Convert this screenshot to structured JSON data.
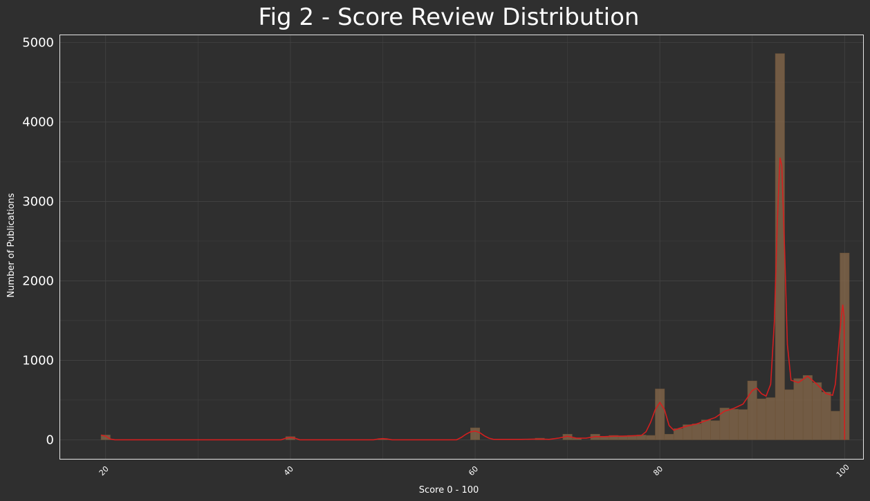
{
  "chart_data": {
    "type": "bar",
    "title": "Fig 2 - Score Review Distribution",
    "xlabel": "Score 0 - 100",
    "ylabel": "Number of Publications",
    "xlim": [
      15,
      102
    ],
    "ylim": [
      -240,
      5100
    ],
    "xticks": [
      20,
      40,
      60,
      80,
      100
    ],
    "yticks": [
      0,
      1000,
      2000,
      3000,
      4000,
      5000
    ],
    "grid": true,
    "bin_width": 1,
    "colors": {
      "background": "#2f2f2f",
      "plot_background": "#2f2f2f",
      "frame": "#e8e8e8",
      "grid": "#444444",
      "bar": "#8a6b4c",
      "bar_edge": "#6b5238",
      "kde": "#d41f1f"
    },
    "bins": [
      {
        "x": 20,
        "y": 60
      },
      {
        "x": 40,
        "y": 40
      },
      {
        "x": 50,
        "y": 15
      },
      {
        "x": 60,
        "y": 150
      },
      {
        "x": 67,
        "y": 20
      },
      {
        "x": 70,
        "y": 70
      },
      {
        "x": 71,
        "y": 20
      },
      {
        "x": 73,
        "y": 70
      },
      {
        "x": 74,
        "y": 40
      },
      {
        "x": 75,
        "y": 55
      },
      {
        "x": 76,
        "y": 50
      },
      {
        "x": 77,
        "y": 55
      },
      {
        "x": 78,
        "y": 60
      },
      {
        "x": 79,
        "y": 55
      },
      {
        "x": 80,
        "y": 640
      },
      {
        "x": 81,
        "y": 70
      },
      {
        "x": 82,
        "y": 140
      },
      {
        "x": 83,
        "y": 190
      },
      {
        "x": 84,
        "y": 200
      },
      {
        "x": 85,
        "y": 250
      },
      {
        "x": 86,
        "y": 240
      },
      {
        "x": 87,
        "y": 400
      },
      {
        "x": 88,
        "y": 385
      },
      {
        "x": 89,
        "y": 380
      },
      {
        "x": 90,
        "y": 740
      },
      {
        "x": 91,
        "y": 515
      },
      {
        "x": 92,
        "y": 530
      },
      {
        "x": 93,
        "y": 4860
      },
      {
        "x": 94,
        "y": 630
      },
      {
        "x": 95,
        "y": 770
      },
      {
        "x": 96,
        "y": 810
      },
      {
        "x": 97,
        "y": 720
      },
      {
        "x": 98,
        "y": 600
      },
      {
        "x": 99,
        "y": 360
      },
      {
        "x": 100,
        "y": 2350
      }
    ],
    "kde": [
      [
        19.5,
        60
      ],
      [
        20,
        45
      ],
      [
        20.5,
        10
      ],
      [
        21,
        0
      ],
      [
        30,
        0
      ],
      [
        39,
        0
      ],
      [
        39.5,
        20
      ],
      [
        40,
        30
      ],
      [
        40.5,
        20
      ],
      [
        41,
        0
      ],
      [
        49,
        0
      ],
      [
        49.5,
        10
      ],
      [
        50,
        15
      ],
      [
        50.5,
        10
      ],
      [
        51,
        0
      ],
      [
        58,
        0
      ],
      [
        58.5,
        30
      ],
      [
        59,
        70
      ],
      [
        59.5,
        100
      ],
      [
        60,
        110
      ],
      [
        60.5,
        90
      ],
      [
        61,
        50
      ],
      [
        61.5,
        20
      ],
      [
        62,
        5
      ],
      [
        65,
        5
      ],
      [
        67,
        10
      ],
      [
        68,
        5
      ],
      [
        69,
        20
      ],
      [
        70,
        45
      ],
      [
        71,
        20
      ],
      [
        72,
        20
      ],
      [
        73,
        40
      ],
      [
        74,
        40
      ],
      [
        75,
        45
      ],
      [
        76,
        45
      ],
      [
        77,
        50
      ],
      [
        78,
        55
      ],
      [
        78.5,
        100
      ],
      [
        79,
        220
      ],
      [
        79.5,
        380
      ],
      [
        80,
        470
      ],
      [
        80.5,
        380
      ],
      [
        81,
        180
      ],
      [
        81.5,
        120
      ],
      [
        82,
        140
      ],
      [
        83,
        175
      ],
      [
        84,
        200
      ],
      [
        85,
        240
      ],
      [
        86,
        280
      ],
      [
        87,
        360
      ],
      [
        88,
        395
      ],
      [
        89,
        450
      ],
      [
        90,
        620
      ],
      [
        90.5,
        650
      ],
      [
        91,
        580
      ],
      [
        91.5,
        550
      ],
      [
        92,
        700
      ],
      [
        92.4,
        1500
      ],
      [
        92.7,
        2700
      ],
      [
        93,
        3550
      ],
      [
        93.2,
        3450
      ],
      [
        93.5,
        2400
      ],
      [
        93.8,
        1200
      ],
      [
        94.2,
        750
      ],
      [
        95,
        720
      ],
      [
        96,
        800
      ],
      [
        97,
        700
      ],
      [
        98,
        580
      ],
      [
        98.7,
        560
      ],
      [
        99,
        700
      ],
      [
        99.3,
        1100
      ],
      [
        99.6,
        1500
      ],
      [
        99.8,
        1700
      ],
      [
        99.95,
        1550
      ],
      [
        100,
        0
      ]
    ]
  }
}
